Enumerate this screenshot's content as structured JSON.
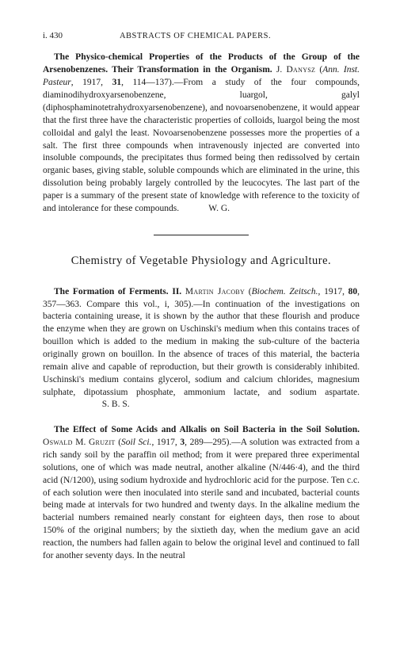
{
  "page_number": "i. 430",
  "running_head": "ABSTRACTS OF CHEMICAL PAPERS.",
  "section_title": "Chemistry of Vegetable Physiology and Agriculture.",
  "colors": {
    "text": "#1a1a1a",
    "background": "#ffffff",
    "rule": "#222222"
  },
  "typography": {
    "body_font": "Times New Roman",
    "body_size_pt": 9,
    "header_size_pt": 8,
    "section_title_size_pt": 11,
    "line_height": 1.38
  },
  "abstracts": [
    {
      "title": "The Physico-chemical Properties of the Products of the Group of the Arsenobenzenes. Their Transformation in the Organism.",
      "author_ref": "J. Danysz (Ann. Inst. Pasteur, 1917, 31, 114—137).—",
      "body": "From a study of the four compounds, diaminodihydroxyarsenobenzene, luargol, galyl (diphosphaminotetrahydroxyarsenobenzene), and novoarsenobenzene, it would appear that the first three have the characteristic properties of colloids, luargol being the most colloidal and galyl the least. Novoarsenobenzene possesses more the properties of a salt. The first three compounds when intravenously injected are converted into insoluble compounds, the precipitates thus formed being then redissolved by certain organic bases, giving stable, soluble compounds which are eliminated in the urine, this dissolution being probably largely controlled by the leucocytes. The last part of the paper is a summary of the present state of knowledge with reference to the toxicity of and intolerance for these compounds.",
      "signoff": "W. G."
    },
    {
      "title": "The Formation of Ferments. II.",
      "author_ref": "Martin Jacoby (Biochem. Zeitsch., 1917, 80, 357—363. Compare this vol., i, 305).—",
      "body": "In continuation of the investigations on bacteria containing urease, it is shown by the author that these flourish and produce the enzyme when they are grown on Uschinski's medium when this contains traces of bouillon which is added to the medium in making the sub-culture of the bacteria originally grown on bouillon. In the absence of traces of this material, the bacteria remain alive and capable of reproduction, but their growth is considerably inhibited. Uschinski's medium contains glycerol, sodium and calcium chlorides, magnesium sulphate, dipotassium phosphate, ammonium lactate, and sodium aspartate.",
      "signoff": "S. B. S."
    },
    {
      "title": "The Effect of Some Acids and Alkalis on Soil Bacteria in the Soil Solution.",
      "author_ref": "Oswald M. Gruzit (Soil Sci., 1917, 3, 289—295).—",
      "body": "A solution was extracted from a rich sandy soil by the paraffin oil method; from it were prepared three experimental solutions, one of which was made neutral, another alkaline (N/446·4), and the third acid (N/1200), using sodium hydroxide and hydrochloric acid for the purpose. Ten c.c. of each solution were then inoculated into sterile sand and incubated, bacterial counts being made at intervals for two hundred and twenty days. In the alkaline medium the bacterial numbers remained nearly constant for eighteen days, then rose to about 150% of the original numbers; by the sixtieth day, when the medium gave an acid reaction, the numbers had fallen again to below the original level and continued to fall for another seventy days. In the neutral",
      "signoff": ""
    }
  ]
}
